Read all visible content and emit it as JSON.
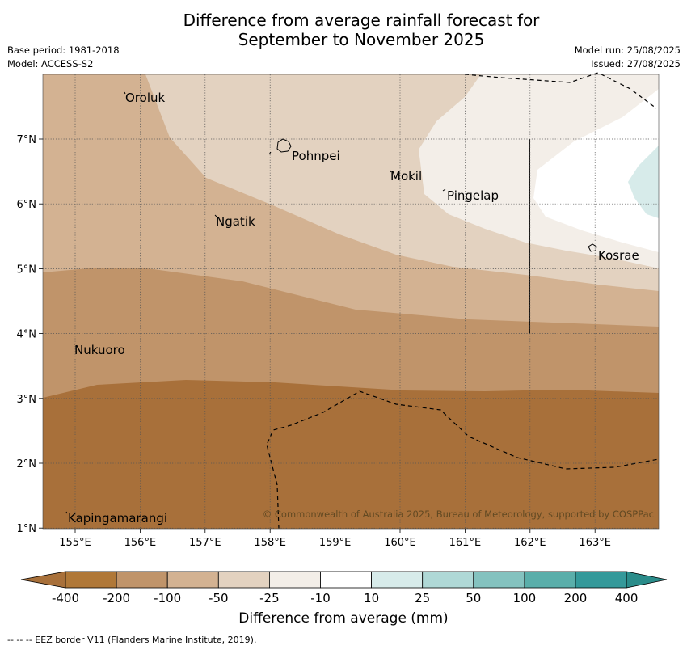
{
  "header": {
    "title_line1": "Difference from average rainfall forecast for",
    "title_line2": "September to November 2025",
    "base_period": "Base period: 1981-2018",
    "model": "Model: ACCESS-S2",
    "model_run": "Model run: 25/08/2025",
    "issued": "Issued: 27/08/2025"
  },
  "map": {
    "x_ticks": [
      "155°E",
      "156°E",
      "157°E",
      "158°E",
      "159°E",
      "160°E",
      "161°E",
      "162°E",
      "163°E"
    ],
    "y_ticks": [
      "7°N",
      "6°N",
      "5°N",
      "4°N",
      "3°N",
      "2°N",
      "1°N"
    ],
    "places": [
      "Oroluk",
      "Pohnpei",
      "Mokil",
      "Pingelap",
      "Ngatik",
      "Kosrae",
      "Nukuoro",
      "Kapingamarangi"
    ],
    "copyright": "© Commonwealth of Australia 2025, Bureau of Meteorology, supported by COSPPac"
  },
  "colorbar": {
    "labels": [
      "-400",
      "-200",
      "-100",
      "-50",
      "-25",
      "-10",
      "10",
      "25",
      "50",
      "100",
      "200",
      "400"
    ],
    "colors": [
      "#a8703a",
      "#b07838",
      "#c0946a",
      "#d3b292",
      "#e3d2c0",
      "#f3eee8",
      "#ffffff",
      "#d7ebea",
      "#afd8d6",
      "#84c2bf",
      "#5aaeaa",
      "#34999a",
      "#2a8c8a"
    ],
    "title": "Difference from average (mm)"
  },
  "footer": {
    "eez_legend": "--  --  -- EEZ border V11 (Flanders Marine Institute, 2019)."
  }
}
